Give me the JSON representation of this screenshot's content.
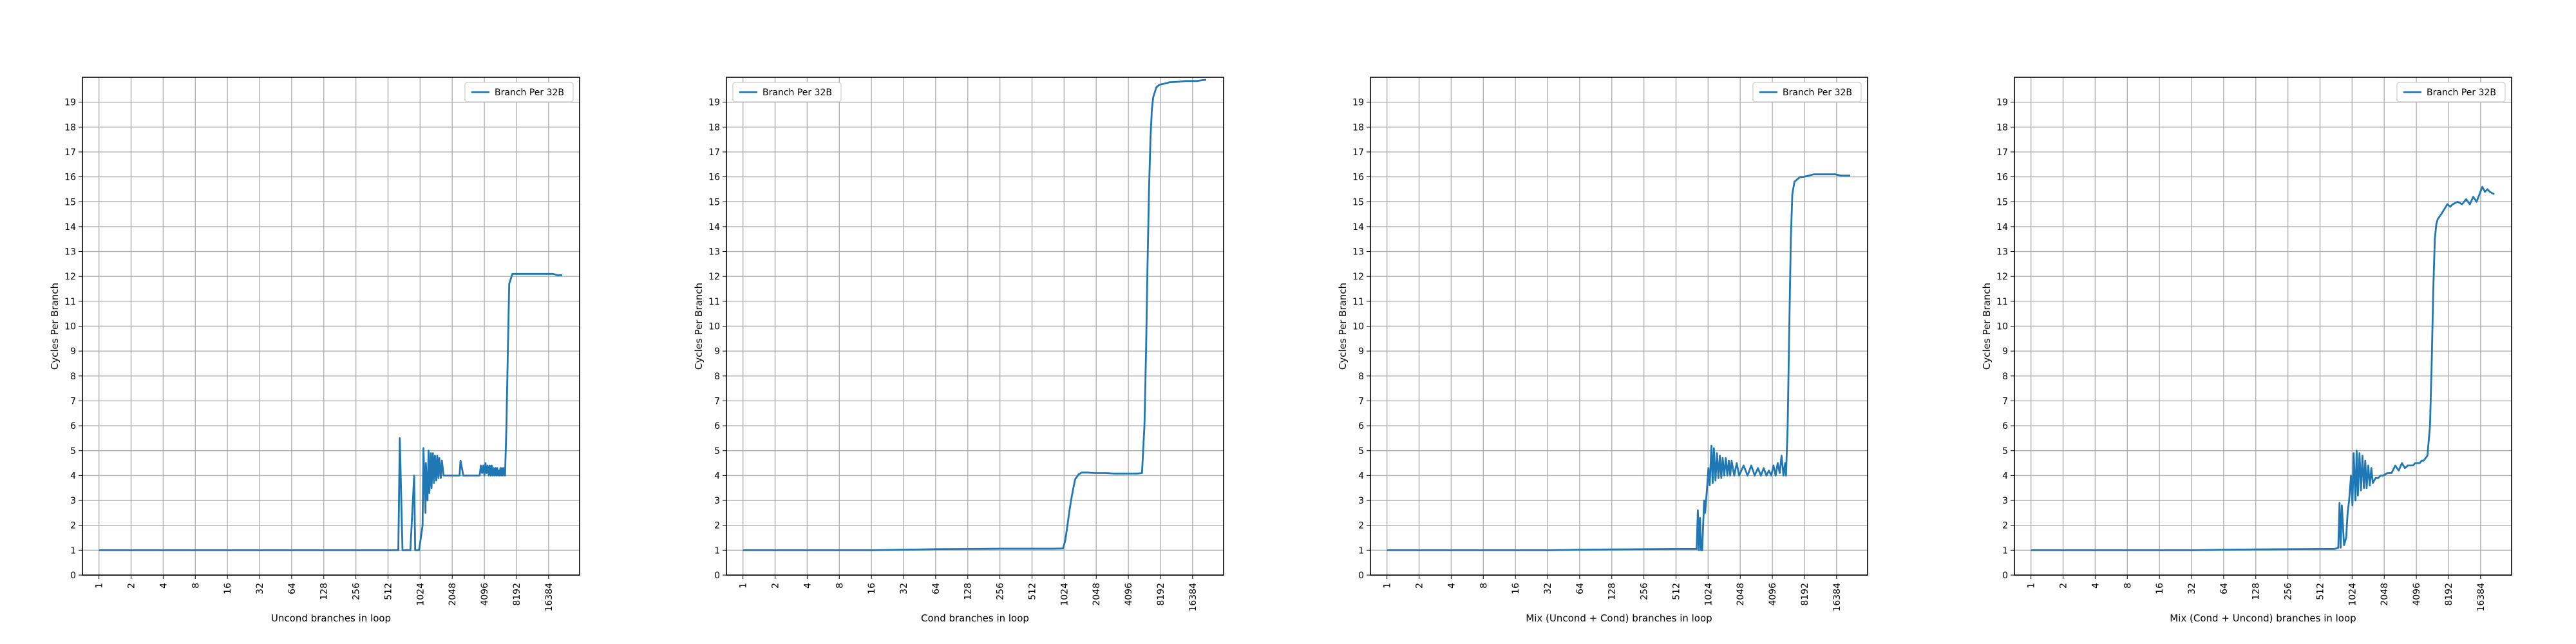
{
  "figure": {
    "background": "#ffffff",
    "line_color": "#1f77b4",
    "grid_color": "#b0b0b0"
  },
  "chart_data": [
    {
      "type": "line",
      "xlabel": "Uncond branches in loop",
      "ylabel": "Cycles Per Branch",
      "xscale": "log2",
      "xticks": [
        1,
        2,
        4,
        8,
        16,
        32,
        64,
        128,
        256,
        512,
        1024,
        2048,
        4096,
        8192,
        16384
      ],
      "yticks": [
        0,
        1,
        2,
        3,
        4,
        5,
        6,
        7,
        8,
        9,
        10,
        11,
        12,
        13,
        14,
        15,
        16,
        17,
        18,
        19
      ],
      "xlim": [
        0.7,
        32000
      ],
      "ylim": [
        0,
        20
      ],
      "grid": true,
      "legend_position": "top-right",
      "series": [
        {
          "name": "Branch Per 32B",
          "x": [
            1,
            2,
            4,
            8,
            16,
            32,
            64,
            128,
            256,
            512,
            600,
            620,
            640,
            660,
            700,
            720,
            780,
            800,
            830,
            900,
            920,
            960,
            1000,
            1040,
            1080,
            1100,
            1150,
            1160,
            1200,
            1230,
            1250,
            1290,
            1310,
            1350,
            1380,
            1410,
            1450,
            1480,
            1520,
            1550,
            1600,
            1640,
            1700,
            1800,
            1900,
            2000,
            2200,
            2400,
            2450,
            2600,
            2800,
            3000,
            3200,
            3400,
            3600,
            3700,
            3800,
            3900,
            4000,
            4100,
            4200,
            4300,
            4400,
            4500,
            4600,
            4700,
            4800,
            4900,
            5000,
            5100,
            5200,
            5300,
            5400,
            5500,
            5600,
            5700,
            5800,
            5900,
            6000,
            6100,
            6200,
            6400,
            6600,
            6800,
            7000,
            7500,
            8000,
            9000,
            10000,
            12000,
            14000,
            16000,
            18000,
            20000,
            22000
          ],
          "y": [
            1.0,
            1.0,
            1.0,
            1.0,
            1.0,
            1.0,
            1.0,
            1.0,
            1.0,
            1.0,
            1.0,
            1.0,
            1.0,
            5.5,
            1.0,
            1.0,
            1.0,
            1.0,
            1.0,
            4.0,
            1.0,
            1.0,
            1.0,
            1.5,
            2.0,
            5.1,
            2.5,
            4.5,
            3.0,
            5.0,
            3.3,
            4.9,
            3.5,
            4.9,
            3.7,
            4.8,
            3.8,
            4.8,
            3.9,
            4.7,
            3.9,
            4.6,
            4.0,
            4.0,
            4.0,
            4.0,
            4.0,
            4.0,
            4.6,
            4.0,
            4.0,
            4.0,
            4.0,
            4.0,
            4.0,
            4.0,
            4.4,
            4.1,
            4.4,
            4.0,
            4.5,
            4.1,
            4.4,
            4.0,
            4.4,
            4.0,
            4.4,
            4.0,
            4.3,
            4.0,
            4.3,
            4.0,
            4.3,
            4.0,
            4.2,
            4.0,
            4.3,
            4.0,
            4.3,
            4.0,
            4.3,
            4.0,
            6.0,
            9.0,
            11.7,
            12.1,
            12.1,
            12.1,
            12.1,
            12.1,
            12.1,
            12.1,
            12.1,
            12.05,
            12.05
          ]
        }
      ]
    },
    {
      "type": "line",
      "xlabel": "Cond branches in loop",
      "ylabel": "Cycles Per Branch",
      "xscale": "log2",
      "xticks": [
        1,
        2,
        4,
        8,
        16,
        32,
        64,
        128,
        256,
        512,
        1024,
        2048,
        4096,
        8192,
        16384
      ],
      "yticks": [
        0,
        1,
        2,
        3,
        4,
        5,
        6,
        7,
        8,
        9,
        10,
        11,
        12,
        13,
        14,
        15,
        16,
        17,
        18,
        19
      ],
      "xlim": [
        0.7,
        32000
      ],
      "ylim": [
        0,
        20
      ],
      "grid": true,
      "legend_position": "top-left",
      "series": [
        {
          "name": "Branch Per 32B",
          "x": [
            1,
            2,
            4,
            8,
            16,
            32,
            64,
            128,
            256,
            512,
            800,
            1000,
            1050,
            1100,
            1150,
            1200,
            1250,
            1300,
            1400,
            1500,
            1700,
            2000,
            2500,
            3000,
            3500,
            4000,
            5000,
            5500,
            5800,
            6000,
            6200,
            6400,
            6600,
            6800,
            7000,
            7500,
            8000,
            9000,
            10000,
            12000,
            14000,
            16000,
            18000,
            20000,
            22000
          ],
          "y": [
            1.0,
            1.0,
            1.0,
            1.0,
            1.0,
            1.02,
            1.04,
            1.05,
            1.06,
            1.06,
            1.06,
            1.07,
            1.4,
            2.0,
            2.6,
            3.1,
            3.5,
            3.85,
            4.05,
            4.12,
            4.12,
            4.1,
            4.1,
            4.08,
            4.08,
            4.08,
            4.08,
            4.1,
            6.0,
            9.0,
            12.5,
            15.5,
            17.5,
            18.7,
            19.2,
            19.6,
            19.7,
            19.75,
            19.8,
            19.82,
            19.85,
            19.85,
            19.85,
            19.88,
            19.9
          ]
        }
      ]
    },
    {
      "type": "line",
      "xlabel": "Mix (Uncond + Cond) branches in loop",
      "ylabel": "Cycles Per Branch",
      "xscale": "log2",
      "xticks": [
        1,
        2,
        4,
        8,
        16,
        32,
        64,
        128,
        256,
        512,
        1024,
        2048,
        4096,
        8192,
        16384
      ],
      "yticks": [
        0,
        1,
        2,
        3,
        4,
        5,
        6,
        7,
        8,
        9,
        10,
        11,
        12,
        13,
        14,
        15,
        16,
        17,
        18,
        19
      ],
      "xlim": [
        0.7,
        32000
      ],
      "ylim": [
        0,
        20
      ],
      "grid": true,
      "legend_position": "top-right",
      "series": [
        {
          "name": "Branch Per 32B",
          "x": [
            1,
            2,
            4,
            8,
            16,
            32,
            64,
            128,
            256,
            512,
            700,
            780,
            800,
            820,
            840,
            860,
            880,
            900,
            940,
            960,
            1000,
            1030,
            1060,
            1100,
            1130,
            1160,
            1200,
            1240,
            1280,
            1320,
            1360,
            1400,
            1450,
            1500,
            1550,
            1600,
            1650,
            1700,
            1800,
            1900,
            2000,
            2200,
            2400,
            2600,
            2800,
            3000,
            3200,
            3400,
            3600,
            3800,
            4000,
            4200,
            4400,
            4600,
            4800,
            5000,
            5200,
            5400,
            5500,
            5700,
            5900,
            6100,
            6300,
            6600,
            7000,
            7500,
            8000,
            9000,
            10000,
            12000,
            14000,
            16000,
            18000,
            20000,
            22000
          ],
          "y": [
            1.0,
            1.0,
            1.0,
            1.0,
            1.0,
            1.0,
            1.02,
            1.03,
            1.04,
            1.05,
            1.05,
            1.05,
            1.05,
            2.6,
            1.0,
            2.3,
            1.0,
            1.0,
            3.0,
            2.5,
            3.5,
            4.3,
            3.6,
            5.2,
            3.7,
            5.1,
            3.8,
            4.9,
            3.9,
            4.8,
            3.9,
            4.7,
            4.0,
            4.7,
            4.0,
            4.6,
            4.0,
            4.6,
            4.0,
            4.5,
            4.0,
            4.4,
            4.0,
            4.4,
            4.0,
            4.3,
            4.0,
            4.3,
            4.0,
            4.2,
            4.0,
            4.4,
            4.0,
            4.5,
            4.1,
            4.8,
            4.0,
            4.5,
            4.0,
            6.0,
            10.0,
            13.5,
            15.3,
            15.8,
            15.9,
            16.0,
            16.0,
            16.05,
            16.1,
            16.1,
            16.1,
            16.1,
            16.05,
            16.05,
            16.05
          ]
        }
      ]
    },
    {
      "type": "line",
      "xlabel": "Mix (Cond + Uncond) branches in loop",
      "ylabel": "Cycles Per Branch",
      "xscale": "log2",
      "xticks": [
        1,
        2,
        4,
        8,
        16,
        32,
        64,
        128,
        256,
        512,
        1024,
        2048,
        4096,
        8192,
        16384
      ],
      "yticks": [
        0,
        1,
        2,
        3,
        4,
        5,
        6,
        7,
        8,
        9,
        10,
        11,
        12,
        13,
        14,
        15,
        16,
        17,
        18,
        19
      ],
      "xlim": [
        0.7,
        32000
      ],
      "ylim": [
        0,
        20
      ],
      "grid": true,
      "legend_position": "top-right",
      "series": [
        {
          "name": "Branch Per 32B",
          "x": [
            1,
            2,
            4,
            8,
            16,
            32,
            64,
            128,
            256,
            512,
            700,
            760,
            780,
            800,
            820,
            860,
            900,
            930,
            960,
            1000,
            1030,
            1060,
            1100,
            1130,
            1160,
            1200,
            1240,
            1280,
            1320,
            1360,
            1400,
            1450,
            1500,
            1550,
            1600,
            1700,
            1800,
            1900,
            2000,
            2200,
            2400,
            2600,
            2800,
            3000,
            3200,
            3400,
            3600,
            3800,
            4000,
            4200,
            4400,
            4600,
            4800,
            5000,
            5200,
            5500,
            5700,
            5900,
            6100,
            6300,
            6500,
            7000,
            7500,
            8000,
            8500,
            9000,
            10000,
            11000,
            12000,
            13000,
            14000,
            15000,
            16000,
            17000,
            18000,
            19000,
            20000,
            22000
          ],
          "y": [
            1.0,
            1.0,
            1.0,
            1.0,
            1.0,
            1.0,
            1.02,
            1.03,
            1.04,
            1.05,
            1.05,
            1.1,
            2.9,
            1.1,
            2.8,
            1.2,
            1.5,
            2.5,
            3.0,
            4.0,
            2.8,
            4.9,
            3.0,
            5.0,
            3.2,
            4.9,
            3.4,
            4.8,
            3.5,
            4.6,
            3.5,
            4.4,
            3.6,
            4.3,
            3.7,
            3.9,
            3.9,
            4.0,
            4.0,
            4.1,
            4.1,
            4.4,
            4.2,
            4.5,
            4.3,
            4.4,
            4.4,
            4.4,
            4.5,
            4.5,
            4.5,
            4.6,
            4.6,
            4.7,
            4.8,
            6.0,
            8.5,
            11.5,
            13.5,
            14.1,
            14.3,
            14.5,
            14.7,
            14.9,
            14.8,
            14.9,
            15.0,
            14.9,
            15.1,
            14.9,
            15.2,
            15.0,
            15.3,
            15.6,
            15.4,
            15.5,
            15.4,
            15.3
          ]
        }
      ]
    }
  ]
}
